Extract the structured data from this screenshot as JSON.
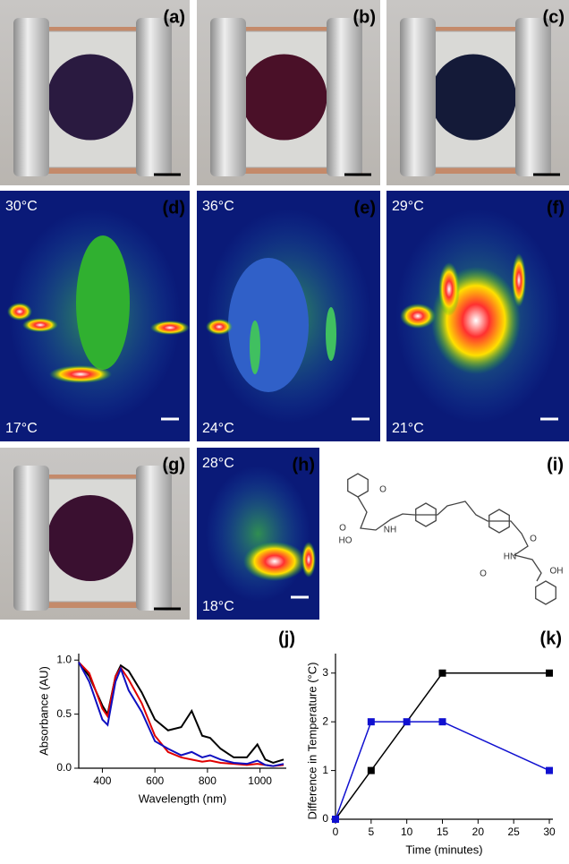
{
  "panels": [
    {
      "label": "(a)"
    },
    {
      "label": "(b)"
    },
    {
      "label": "(c)"
    },
    {
      "label": "(d)",
      "high": "30°C",
      "low": "17°C"
    },
    {
      "label": "(e)",
      "high": "36°C",
      "low": "24°C"
    },
    {
      "label": "(f)",
      "high": "29°C",
      "low": "21°C"
    },
    {
      "label": "(g)"
    },
    {
      "label": "(h)",
      "high": "28°C",
      "low": "18°C"
    },
    {
      "label": "(i)",
      "structure_labels": [
        "O",
        "HO",
        "NH",
        "O",
        "HN",
        "O",
        "OH",
        "O"
      ]
    }
  ],
  "chart_data": [
    {
      "type": "line",
      "panel_label": "(j)",
      "x_label": "Wavelength (nm)",
      "y_label": "Absorbance (AU)",
      "x": [
        310,
        350,
        400,
        420,
        450,
        470,
        500,
        550,
        600,
        650,
        700,
        740,
        780,
        810,
        850,
        900,
        950,
        990,
        1020,
        1050,
        1090
      ],
      "series": [
        {
          "color": "#000000",
          "values": [
            0.98,
            0.85,
            0.58,
            0.5,
            0.85,
            0.95,
            0.9,
            0.7,
            0.45,
            0.35,
            0.38,
            0.53,
            0.3,
            0.28,
            0.18,
            0.1,
            0.1,
            0.22,
            0.08,
            0.05,
            0.08
          ]
        },
        {
          "color": "#e00000",
          "values": [
            0.98,
            0.88,
            0.55,
            0.48,
            0.85,
            0.93,
            0.82,
            0.6,
            0.3,
            0.15,
            0.1,
            0.08,
            0.06,
            0.07,
            0.05,
            0.04,
            0.03,
            0.04,
            0.03,
            0.02,
            0.03
          ]
        },
        {
          "color": "#1010c0",
          "values": [
            0.98,
            0.8,
            0.45,
            0.4,
            0.8,
            0.92,
            0.72,
            0.52,
            0.25,
            0.18,
            0.12,
            0.15,
            0.1,
            0.12,
            0.08,
            0.05,
            0.04,
            0.07,
            0.03,
            0.02,
            0.04
          ]
        }
      ],
      "xlim": [
        310,
        1100
      ],
      "ylim": [
        0,
        1.06
      ],
      "xticks": [
        400,
        600,
        800,
        1000
      ],
      "yticks": [
        {
          "value": 0,
          "label": "0.0"
        },
        0.5,
        {
          "value": 1,
          "label": "1.0"
        }
      ]
    },
    {
      "type": "line",
      "panel_label": "(k)",
      "x_label": "Time (minutes)",
      "y_label": "Difference in Temperature (°C)",
      "series": [
        {
          "color": "#000000",
          "x": [
            0,
            5,
            15,
            30
          ],
          "values": [
            0,
            1,
            3,
            3
          ]
        },
        {
          "color": "#1010d0",
          "x": [
            0,
            5,
            10,
            15,
            30
          ],
          "values": [
            0,
            2,
            2,
            2,
            1
          ]
        }
      ],
      "xlim": [
        0,
        30.5
      ],
      "ylim": [
        0,
        3.4
      ],
      "xticks": [
        0,
        5,
        10,
        15,
        20,
        25,
        30
      ],
      "yticks": [
        0,
        1,
        2,
        3
      ]
    }
  ]
}
